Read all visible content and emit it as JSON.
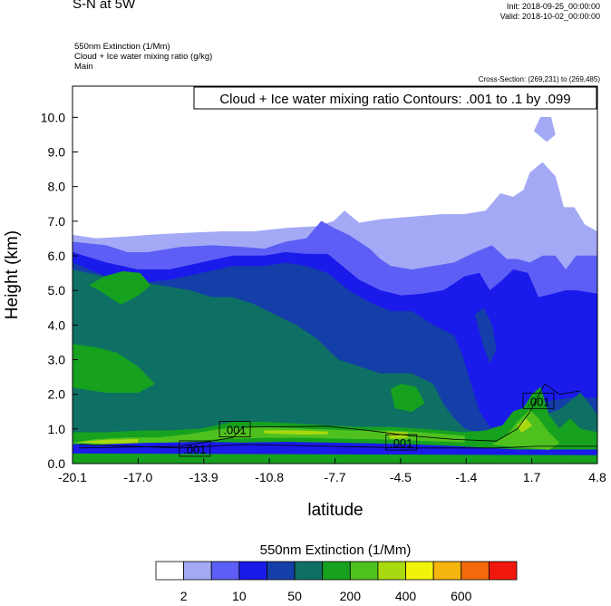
{
  "header": {
    "title": "S-N at 5W",
    "init": "Init: 2018-09-25_00:00:00",
    "valid": "Valid: 2018-10-02_00:00:00",
    "field1": "550nm Extinction   (1/Mm)",
    "field2": "Cloud + Ice water mixing ratio   (g/kg)",
    "field3": "Main",
    "cross_section": "Cross-Section: (269,231) to (269,485)"
  },
  "colors": {
    "levels": [
      "#ffffff",
      "#a3a9f5",
      "#5c5ef5",
      "#1a1aeb",
      "#143ea8",
      "#0e7064",
      "#16a11f",
      "#4fc11e",
      "#a9d90f",
      "#f2f20b",
      "#f5b50c",
      "#f26a0c",
      "#f2170c"
    ]
  },
  "chart_data": {
    "type": "heatmap",
    "title": "Cloud + Ice water mixing ratio Contours: .001 to .1 by .099",
    "xlabel": "latitude",
    "ylabel": "Height (km)",
    "xlim": [
      -20.1,
      4.8
    ],
    "ylim": [
      0,
      10.9
    ],
    "x_ticks": [
      "-20.1",
      "-17.0",
      "-13.9",
      "-10.8",
      "-7.7",
      "-4.5",
      "-1.4",
      "1.7",
      "4.8"
    ],
    "y_ticks": [
      "0.0",
      "1.0",
      "2.0",
      "3.0",
      "4.0",
      "5.0",
      "6.0",
      "7.0",
      "8.0",
      "9.0",
      "10.0"
    ],
    "contour_labels": [
      {
        "text": ".001",
        "x": -14.3,
        "y": 0.42
      },
      {
        "text": ".001",
        "x": -12.4,
        "y": 0.98
      },
      {
        "text": ".001",
        "x": -4.5,
        "y": 0.6
      },
      {
        "text": ".001",
        "x": 2.0,
        "y": 1.8
      }
    ],
    "colorbar": {
      "title": "550nm Extinction  (1/Mm)",
      "labels": [
        "2",
        "10",
        "50",
        "200",
        "400",
        "600"
      ]
    },
    "regions": [
      {
        "level": 1,
        "points": [
          [
            -20.1,
            0
          ],
          [
            -20.1,
            6.6
          ],
          [
            -19.0,
            6.5
          ],
          [
            -17.5,
            6.55
          ],
          [
            -16.5,
            6.6
          ],
          [
            -15.0,
            6.65
          ],
          [
            -13.0,
            6.7
          ],
          [
            -11.5,
            6.7
          ],
          [
            -10.0,
            6.8
          ],
          [
            -8.5,
            6.85
          ],
          [
            -7.7,
            7.0
          ],
          [
            -7.2,
            7.3
          ],
          [
            -6.5,
            6.95
          ],
          [
            -5.5,
            7.05
          ],
          [
            -4.5,
            7.1
          ],
          [
            -3.5,
            7.15
          ],
          [
            -2.5,
            7.2
          ],
          [
            -1.5,
            7.2
          ],
          [
            -0.5,
            7.3
          ],
          [
            0.2,
            7.8
          ],
          [
            0.8,
            7.7
          ],
          [
            1.3,
            7.9
          ],
          [
            1.6,
            8.4
          ],
          [
            2.2,
            8.7
          ],
          [
            2.8,
            8.3
          ],
          [
            3.2,
            7.4
          ],
          [
            3.7,
            7.4
          ],
          [
            4.2,
            6.9
          ],
          [
            4.8,
            6.7
          ],
          [
            4.8,
            0
          ]
        ]
      },
      {
        "level": 1,
        "points": [
          [
            1.8,
            9.6
          ],
          [
            2.4,
            9.3
          ],
          [
            2.8,
            9.5
          ],
          [
            2.6,
            10.0
          ],
          [
            2.1,
            10.0
          ]
        ]
      },
      {
        "level": 2,
        "points": [
          [
            -20.1,
            0
          ],
          [
            -20.1,
            6.4
          ],
          [
            -18.5,
            6.3
          ],
          [
            -17.5,
            6.1
          ],
          [
            -16.5,
            6.1
          ],
          [
            -15.0,
            6.25
          ],
          [
            -13.5,
            6.3
          ],
          [
            -12.0,
            6.25
          ],
          [
            -11.0,
            6.2
          ],
          [
            -10.0,
            6.4
          ],
          [
            -9.0,
            6.5
          ],
          [
            -8.3,
            7.0
          ],
          [
            -7.7,
            6.8
          ],
          [
            -7.0,
            6.6
          ],
          [
            -6.5,
            6.4
          ],
          [
            -6.0,
            6.2
          ],
          [
            -5.5,
            5.9
          ],
          [
            -5.0,
            5.7
          ],
          [
            -4.0,
            5.6
          ],
          [
            -3.0,
            5.7
          ],
          [
            -2.0,
            5.8
          ],
          [
            -1.0,
            6.1
          ],
          [
            -0.2,
            6.3
          ],
          [
            0.5,
            5.9
          ],
          [
            1.0,
            5.9
          ],
          [
            1.6,
            5.8
          ],
          [
            2.2,
            6.0
          ],
          [
            2.8,
            6.0
          ],
          [
            3.3,
            5.6
          ],
          [
            3.8,
            6.0
          ],
          [
            4.8,
            6.0
          ],
          [
            4.8,
            0
          ]
        ]
      },
      {
        "level": 3,
        "points": [
          [
            -20.1,
            0
          ],
          [
            -20.1,
            6.1
          ],
          [
            -18.5,
            5.8
          ],
          [
            -17.0,
            5.6
          ],
          [
            -15.5,
            5.6
          ],
          [
            -14.0,
            5.8
          ],
          [
            -12.5,
            6.0
          ],
          [
            -11.0,
            6.0
          ],
          [
            -10.0,
            6.1
          ],
          [
            -9.0,
            6.05
          ],
          [
            -8.0,
            6.05
          ],
          [
            -7.5,
            5.8
          ],
          [
            -6.5,
            5.3
          ],
          [
            -5.5,
            5.0
          ],
          [
            -4.5,
            4.85
          ],
          [
            -3.5,
            4.9
          ],
          [
            -2.5,
            5.0
          ],
          [
            -1.5,
            5.4
          ],
          [
            -0.8,
            5.5
          ],
          [
            -0.3,
            5.0
          ],
          [
            0.3,
            5.3
          ],
          [
            0.8,
            5.6
          ],
          [
            1.5,
            5.5
          ],
          [
            2.0,
            4.8
          ],
          [
            2.7,
            4.9
          ],
          [
            3.3,
            5.0
          ],
          [
            3.8,
            5.0
          ],
          [
            4.8,
            4.9
          ],
          [
            4.8,
            0
          ]
        ]
      },
      {
        "level": 4,
        "points": [
          [
            -20.1,
            0
          ],
          [
            -20.1,
            5.8
          ],
          [
            -18.5,
            5.4
          ],
          [
            -17.0,
            5.2
          ],
          [
            -15.5,
            5.3
          ],
          [
            -14.0,
            5.5
          ],
          [
            -12.5,
            5.7
          ],
          [
            -11.0,
            5.7
          ],
          [
            -10.0,
            5.8
          ],
          [
            -9.0,
            5.7
          ],
          [
            -8.0,
            5.5
          ],
          [
            -7.0,
            5.0
          ],
          [
            -6.0,
            4.65
          ],
          [
            -5.0,
            4.4
          ],
          [
            -4.0,
            4.4
          ],
          [
            -3.0,
            4.0
          ],
          [
            -2.0,
            3.7
          ],
          [
            -1.6,
            3.1
          ],
          [
            -1.2,
            2.3
          ],
          [
            -0.8,
            1.5
          ],
          [
            -0.3,
            1.05
          ],
          [
            0.5,
            1.1
          ],
          [
            1.2,
            1.4
          ],
          [
            2.5,
            1.8
          ],
          [
            3.5,
            1.9
          ],
          [
            4.8,
            1.9
          ],
          [
            4.8,
            0
          ]
        ]
      },
      {
        "level": 4,
        "points": [
          [
            -1.0,
            4.3
          ],
          [
            -0.6,
            3.4
          ],
          [
            -0.3,
            2.9
          ],
          [
            0.0,
            3.3
          ],
          [
            -0.2,
            4.0
          ],
          [
            -0.6,
            4.5
          ]
        ]
      },
      {
        "level": 5,
        "points": [
          [
            -20.1,
            0
          ],
          [
            -20.1,
            5.6
          ],
          [
            -19.0,
            5.45
          ],
          [
            -18.0,
            5.3
          ],
          [
            -16.5,
            5.2
          ],
          [
            -15.5,
            5.1
          ],
          [
            -14.5,
            5.0
          ],
          [
            -13.5,
            4.8
          ],
          [
            -12.5,
            4.8
          ],
          [
            -11.5,
            4.6
          ],
          [
            -10.5,
            4.3
          ],
          [
            -9.5,
            4.0
          ],
          [
            -8.5,
            3.6
          ],
          [
            -8.0,
            3.3
          ],
          [
            -7.5,
            3.0
          ],
          [
            -6.5,
            2.8
          ],
          [
            -5.5,
            2.6
          ],
          [
            -4.0,
            2.6
          ],
          [
            -3.0,
            2.3
          ],
          [
            -2.5,
            1.7
          ],
          [
            -2.0,
            1.3
          ],
          [
            -1.5,
            1.0
          ],
          [
            -0.5,
            0.85
          ],
          [
            0.0,
            0.9
          ],
          [
            0.5,
            1.0
          ],
          [
            1.0,
            1.3
          ],
          [
            1.5,
            1.6
          ],
          [
            2.0,
            1.7
          ],
          [
            2.5,
            1.45
          ],
          [
            3.0,
            1.55
          ],
          [
            3.5,
            1.8
          ],
          [
            4.0,
            2.05
          ],
          [
            4.8,
            1.4
          ],
          [
            4.8,
            0
          ]
        ]
      },
      {
        "level": 5,
        "points": [
          [
            -11.0,
            3.5
          ],
          [
            -10.4,
            3.3
          ],
          [
            -10.2,
            3.6
          ],
          [
            -10.8,
            3.8
          ]
        ]
      },
      {
        "level": 6,
        "points": [
          [
            -19.3,
            5.15
          ],
          [
            -18.8,
            5.0
          ],
          [
            -18.2,
            4.75
          ],
          [
            -17.8,
            4.6
          ],
          [
            -17.0,
            4.85
          ],
          [
            -16.4,
            5.15
          ],
          [
            -16.9,
            5.5
          ],
          [
            -17.7,
            5.55
          ],
          [
            -18.6,
            5.4
          ]
        ]
      },
      {
        "level": 6,
        "points": [
          [
            -20.1,
            3.45
          ],
          [
            -19.0,
            3.35
          ],
          [
            -18.0,
            3.2
          ],
          [
            -17.0,
            2.8
          ],
          [
            -16.2,
            2.3
          ],
          [
            -17.0,
            2.05
          ],
          [
            -18.5,
            2.05
          ],
          [
            -20.1,
            2.2
          ]
        ]
      },
      {
        "level": 6,
        "points": [
          [
            -5.0,
            2.15
          ],
          [
            -4.5,
            2.3
          ],
          [
            -3.8,
            2.2
          ],
          [
            -3.4,
            1.75
          ],
          [
            -4.0,
            1.5
          ],
          [
            -4.8,
            1.6
          ]
        ]
      },
      {
        "level": 6,
        "points": [
          [
            -20.1,
            0
          ],
          [
            -20.1,
            0.9
          ],
          [
            -18.5,
            0.9
          ],
          [
            -16.8,
            0.95
          ],
          [
            -15.5,
            0.95
          ],
          [
            -14.0,
            1.0
          ],
          [
            -12.5,
            1.2
          ],
          [
            -11.0,
            1.2
          ],
          [
            -9.5,
            1.15
          ],
          [
            -8.0,
            1.1
          ],
          [
            -6.5,
            1.05
          ],
          [
            -5.0,
            1.05
          ],
          [
            -3.5,
            1.0
          ],
          [
            -2.5,
            0.95
          ],
          [
            -1.5,
            0.9
          ],
          [
            -0.5,
            0.95
          ],
          [
            0.3,
            1.1
          ],
          [
            0.8,
            1.5
          ],
          [
            1.3,
            1.6
          ],
          [
            1.7,
            2.0
          ],
          [
            2.1,
            2.2
          ],
          [
            2.5,
            1.4
          ],
          [
            3.0,
            1.0
          ],
          [
            3.5,
            1.3
          ],
          [
            4.0,
            1.0
          ],
          [
            4.8,
            0.9
          ],
          [
            4.8,
            0
          ]
        ]
      },
      {
        "level": 3,
        "points": [
          [
            -20.1,
            0.55
          ],
          [
            -18.0,
            0.58
          ],
          [
            -16.0,
            0.6
          ],
          [
            -14.0,
            0.62
          ],
          [
            -12.0,
            0.6
          ],
          [
            -10.0,
            0.62
          ],
          [
            -8.0,
            0.6
          ],
          [
            -6.0,
            0.58
          ],
          [
            -4.0,
            0.55
          ],
          [
            -2.0,
            0.5
          ],
          [
            -0.5,
            0.45
          ],
          [
            1.0,
            0.4
          ],
          [
            4.8,
            0.4
          ],
          [
            4.8,
            0.25
          ],
          [
            -20.1,
            0.3
          ]
        ]
      },
      {
        "level": 7,
        "points": [
          [
            -20.1,
            0.6
          ],
          [
            -19.0,
            0.7
          ],
          [
            -17.5,
            0.75
          ],
          [
            -16.0,
            0.75
          ],
          [
            -14.5,
            0.85
          ],
          [
            -13.0,
            1.0
          ],
          [
            -11.0,
            1.05
          ],
          [
            -9.0,
            1.0
          ],
          [
            -7.0,
            0.95
          ],
          [
            -5.0,
            0.95
          ],
          [
            -3.5,
            0.9
          ],
          [
            -2.5,
            0.85
          ],
          [
            -1.5,
            0.8
          ],
          [
            -1.5,
            0.62
          ],
          [
            -3.0,
            0.65
          ],
          [
            -5.0,
            0.7
          ],
          [
            -7.0,
            0.72
          ],
          [
            -9.0,
            0.75
          ],
          [
            -11.0,
            0.75
          ],
          [
            -13.0,
            0.72
          ],
          [
            -15.0,
            0.62
          ],
          [
            -17.0,
            0.6
          ],
          [
            -19.0,
            0.55
          ]
        ]
      },
      {
        "level": 7,
        "points": [
          [
            -0.2,
            0.55
          ],
          [
            0.5,
            0.8
          ],
          [
            1.0,
            1.2
          ],
          [
            1.6,
            1.55
          ],
          [
            2.0,
            1.3
          ],
          [
            2.5,
            0.9
          ],
          [
            3.0,
            0.6
          ],
          [
            2.5,
            0.4
          ],
          [
            1.5,
            0.45
          ]
        ]
      },
      {
        "level": 8,
        "points": [
          [
            -19.8,
            0.62
          ],
          [
            -18.5,
            0.68
          ],
          [
            -17.0,
            0.7
          ],
          [
            -17.0,
            0.6
          ],
          [
            -18.5,
            0.58
          ]
        ]
      },
      {
        "level": 8,
        "points": [
          [
            -11.0,
            0.95
          ],
          [
            -9.5,
            0.95
          ],
          [
            -8.0,
            0.92
          ],
          [
            -8.0,
            0.85
          ],
          [
            -9.5,
            0.85
          ],
          [
            -11.0,
            0.88
          ]
        ]
      },
      {
        "level": 8,
        "points": [
          [
            -5.2,
            0.92
          ],
          [
            -4.2,
            0.9
          ],
          [
            -4.2,
            0.75
          ],
          [
            -5.0,
            0.72
          ]
        ]
      },
      {
        "level": 8,
        "points": [
          [
            1.0,
            1.1
          ],
          [
            1.4,
            1.3
          ],
          [
            1.7,
            1.1
          ],
          [
            1.2,
            0.9
          ]
        ]
      }
    ]
  }
}
